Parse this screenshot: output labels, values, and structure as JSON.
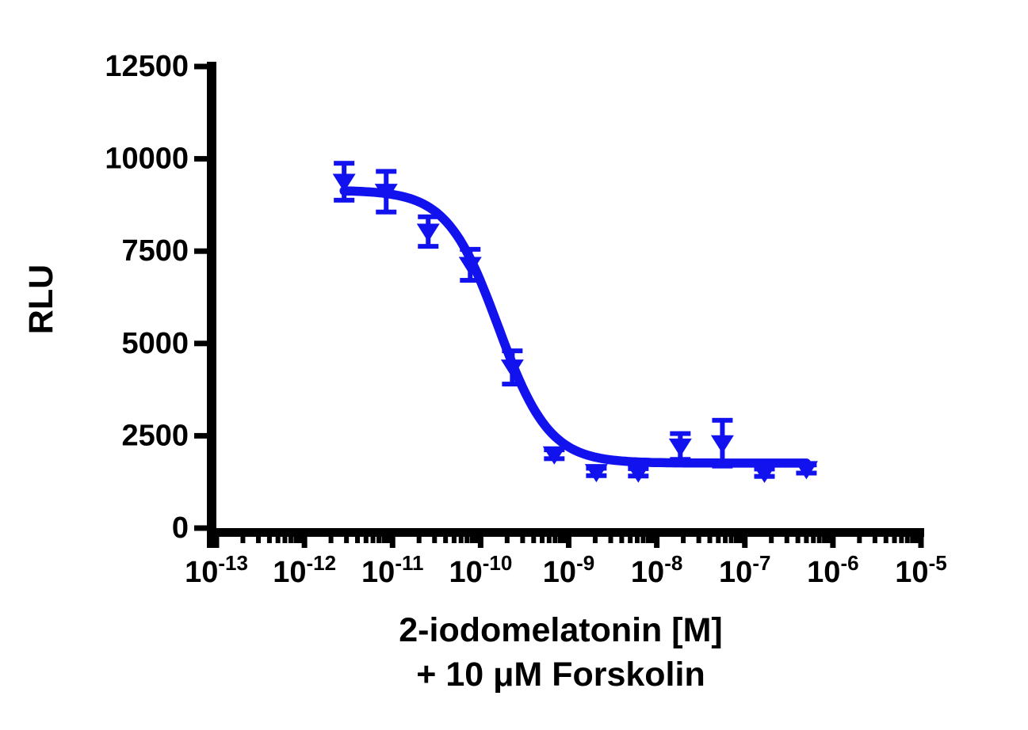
{
  "figure": {
    "background_color": "#ffffff",
    "axis_color": "#000000"
  },
  "chart_data": {
    "type": "scatter",
    "subtype": "dose-response-inhibition-curve",
    "title": "",
    "xlabel_line1": "2-iodomelatonin [M]",
    "xlabel_line2": "+ 10 μM Forskolin",
    "ylabel": "RLU",
    "x_scale": "log10",
    "x_log_range": [
      -13,
      -5
    ],
    "x_tick_label_base": "10",
    "x_tick_exponents": [
      -13,
      -12,
      -11,
      -10,
      -9,
      -8,
      -7,
      -6,
      -5
    ],
    "x_minor_ticks": "log-decade-2-through-9",
    "ylim": [
      0,
      12500
    ],
    "y_ticks": [
      0,
      2500,
      5000,
      7500,
      10000,
      12500
    ],
    "grid": false,
    "legend": "none",
    "marker": "triangle-down",
    "error_bars": "sem-vertical-with-caps",
    "series_color": "#1212EE",
    "points": [
      {
        "conc_m": 2.82e-12,
        "rlu": 9380,
        "sem": 500
      },
      {
        "conc_m": 8.47e-12,
        "rlu": 9110,
        "sem": 550
      },
      {
        "conc_m": 2.54e-11,
        "rlu": 8030,
        "sem": 400
      },
      {
        "conc_m": 7.62e-11,
        "rlu": 7130,
        "sem": 420
      },
      {
        "conc_m": 2.29e-10,
        "rlu": 4350,
        "sem": 450
      },
      {
        "conc_m": 6.86e-10,
        "rlu": 2000,
        "sem": 120
      },
      {
        "conc_m": 2.06e-09,
        "rlu": 1520,
        "sem": 100
      },
      {
        "conc_m": 6.17e-09,
        "rlu": 1510,
        "sem": 100
      },
      {
        "conc_m": 1.85e-08,
        "rlu": 2210,
        "sem": 350
      },
      {
        "conc_m": 5.56e-08,
        "rlu": 2300,
        "sem": 620
      },
      {
        "conc_m": 1.67e-07,
        "rlu": 1500,
        "sem": 100
      },
      {
        "conc_m": 5e-07,
        "rlu": 1600,
        "sem": 110
      }
    ],
    "fit_curve": {
      "model": "sigmoidal-4PL",
      "top_rlu": 9150,
      "bottom_rlu": 1760,
      "log_ic50": -9.8,
      "ic50_m": 1.6e-10,
      "hill_slope": -1.5
    }
  }
}
